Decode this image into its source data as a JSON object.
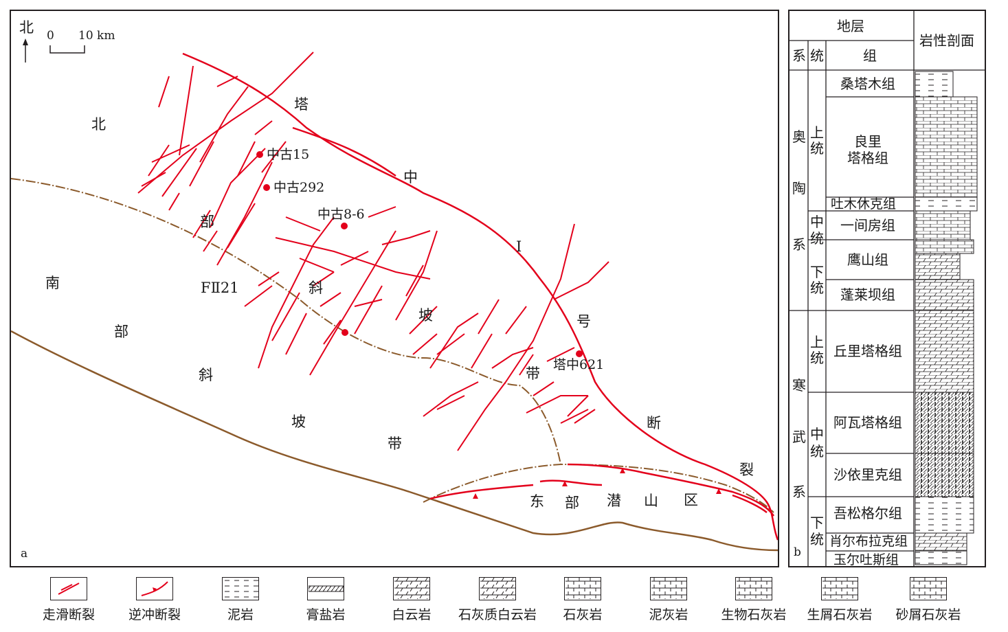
{
  "map": {
    "north_label": "北",
    "scale": {
      "zero": "0",
      "dist": "10 km"
    },
    "panel_tag": "a",
    "region_labels": {
      "north_slope": [
        "北",
        "部",
        "斜",
        "坡",
        "带"
      ],
      "south_slope": [
        "南",
        "部",
        "斜",
        "坡",
        "带"
      ],
      "tazhong_fault": [
        "塔",
        "中",
        "I",
        "号",
        "断",
        "裂"
      ],
      "east_buried_hill": [
        "东",
        "部",
        "潜",
        "山",
        "区"
      ],
      "fault_fii21": "FⅡ21"
    },
    "wells": [
      "中古15",
      "中古292",
      "中古8-6",
      "塔中621"
    ],
    "colors": {
      "fault": "#e3001b",
      "boundary": "#8b5a2b",
      "frame": "#231f20"
    }
  },
  "strat": {
    "header": {
      "stratum": "地层",
      "lith": "岩性剖面",
      "system": "系",
      "series": "统",
      "formation": "组"
    },
    "panel_tag": "b",
    "systems": [
      {
        "name": "奥陶系",
        "chars": [
          "奥",
          "陶",
          "系"
        ]
      },
      {
        "name": "寒武系",
        "chars": [
          "寒",
          "武",
          "系"
        ]
      }
    ],
    "series": [
      {
        "chars": [
          "上",
          "统"
        ]
      },
      {
        "chars": [
          "中",
          "统"
        ]
      },
      {
        "chars": [
          "下",
          "统"
        ]
      },
      {
        "chars": [
          "上",
          "统"
        ]
      },
      {
        "chars": [
          "中",
          "统"
        ]
      },
      {
        "chars": [
          "下",
          "统"
        ]
      }
    ],
    "formations": [
      "桑塔木组",
      "良里\n塔格组",
      "吐木休克组",
      "一间房组",
      "鹰山组",
      "蓬莱坝组",
      "丘里塔格组",
      "阿瓦塔格组",
      "沙依里克组",
      "吾松格尔组",
      "肖尔布拉克组",
      "玉尔吐斯组"
    ]
  },
  "legend": [
    {
      "name": "strike-slip",
      "label": "走滑断裂"
    },
    {
      "name": "thrust",
      "label": "逆冲断裂"
    },
    {
      "name": "mudstone",
      "label": "泥岩"
    },
    {
      "name": "gypsum-salt",
      "label": "膏盐岩"
    },
    {
      "name": "dolomite",
      "label": "白云岩"
    },
    {
      "name": "limy-dolomite",
      "label": "石灰质白云岩"
    },
    {
      "name": "limestone",
      "label": "石灰岩"
    },
    {
      "name": "argillaceous-limestone",
      "label": "泥灰岩"
    },
    {
      "name": "bio-limestone",
      "label": "生物石灰岩"
    },
    {
      "name": "bioclastic-limestone",
      "label": "生屑石灰岩"
    },
    {
      "name": "calcarenite",
      "label": "砂屑石灰岩"
    }
  ]
}
